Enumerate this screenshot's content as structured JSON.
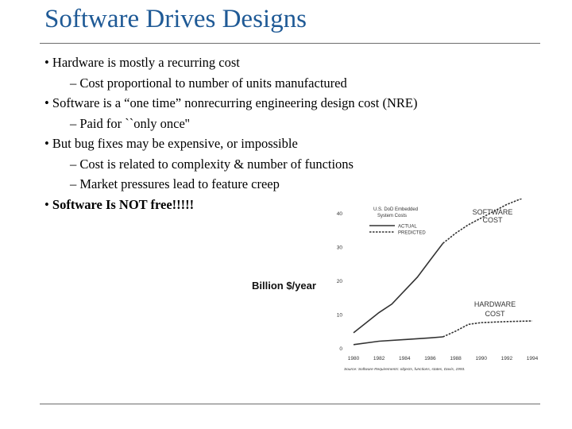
{
  "title": "Software Drives Designs",
  "bullets": [
    {
      "level": 1,
      "bullet": "•",
      "text": "Hardware is mostly a recurring cost"
    },
    {
      "level": 2,
      "bullet": "–",
      "text": "Cost proportional to number of units manufactured"
    },
    {
      "level": 1,
      "bullet": "•",
      "text": "Software is a “one time” nonrecurring engineering design cost (NRE)"
    },
    {
      "level": 2,
      "bullet": "–",
      "text": "Paid for ``only once''"
    },
    {
      "level": 1,
      "bullet": "•",
      "text": "But bug fixes may be expensive, or impossible"
    },
    {
      "level": 2,
      "bullet": "–",
      "text": "Cost is related to complexity & number of functions"
    },
    {
      "level": 2,
      "bullet": "–",
      "text": "Market pressures lead to feature creep"
    },
    {
      "level": 1,
      "bullet": "•",
      "text": "Software Is NOT free!!!!!",
      "bold": true
    }
  ],
  "chart_data": {
    "type": "line",
    "ylabel": "Billion $/year",
    "legend": {
      "title": [
        "U.S. DoD Embedded",
        "System Costs"
      ],
      "entries": [
        {
          "label": "ACTUAL",
          "style": "solid"
        },
        {
          "label": "PREDICTED",
          "style": "dashed"
        }
      ],
      "position": "top-left"
    },
    "x": [
      1980,
      1982,
      1984,
      1986,
      1988,
      1990,
      1992,
      1994
    ],
    "x_tick_labels": [
      "1980",
      "1982",
      "1984",
      "1986",
      "1988",
      "1990",
      "1992",
      "1994"
    ],
    "y_ticks": [
      0,
      10,
      20,
      30,
      40
    ],
    "y_tick_labels": [
      "0",
      "10",
      "20",
      "30",
      "40"
    ],
    "xlim": [
      1980,
      1994
    ],
    "ylim": [
      0,
      40
    ],
    "series": [
      {
        "name": "SOFTWARE COST",
        "actual": {
          "x": [
            1980,
            1981,
            1982,
            1983,
            1984,
            1985,
            1986,
            1987
          ],
          "y": [
            4.5,
            7.5,
            10.5,
            13,
            17,
            21,
            26,
            31
          ]
        },
        "predicted": {
          "x": [
            1987,
            1988,
            1989,
            1990,
            1991,
            1992,
            1993,
            1994
          ],
          "y": [
            31,
            34,
            36.5,
            38.5,
            40.5,
            42.5,
            44,
            45.5
          ]
        }
      },
      {
        "name": "HARDWARE COST",
        "actual": {
          "x": [
            1980,
            1982,
            1984,
            1986,
            1987
          ],
          "y": [
            1,
            2,
            2.5,
            3,
            3.3
          ]
        },
        "predicted": {
          "x": [
            1987,
            1988,
            1989,
            1990,
            1992,
            1994
          ],
          "y": [
            3.3,
            5,
            7,
            7.5,
            7.8,
            8
          ]
        }
      }
    ],
    "annotations": [
      {
        "text": [
          "SOFTWARE",
          "COST"
        ],
        "target": "SOFTWARE COST"
      },
      {
        "text": [
          "HARDWARE",
          "COST"
        ],
        "target": "HARDWARE COST"
      }
    ],
    "source": "Source: Software Requirements: objects, functions, states, Davis, 1993.",
    "colors": {
      "line": "#333333",
      "text": "#333333",
      "ylabel": "#111111"
    }
  }
}
